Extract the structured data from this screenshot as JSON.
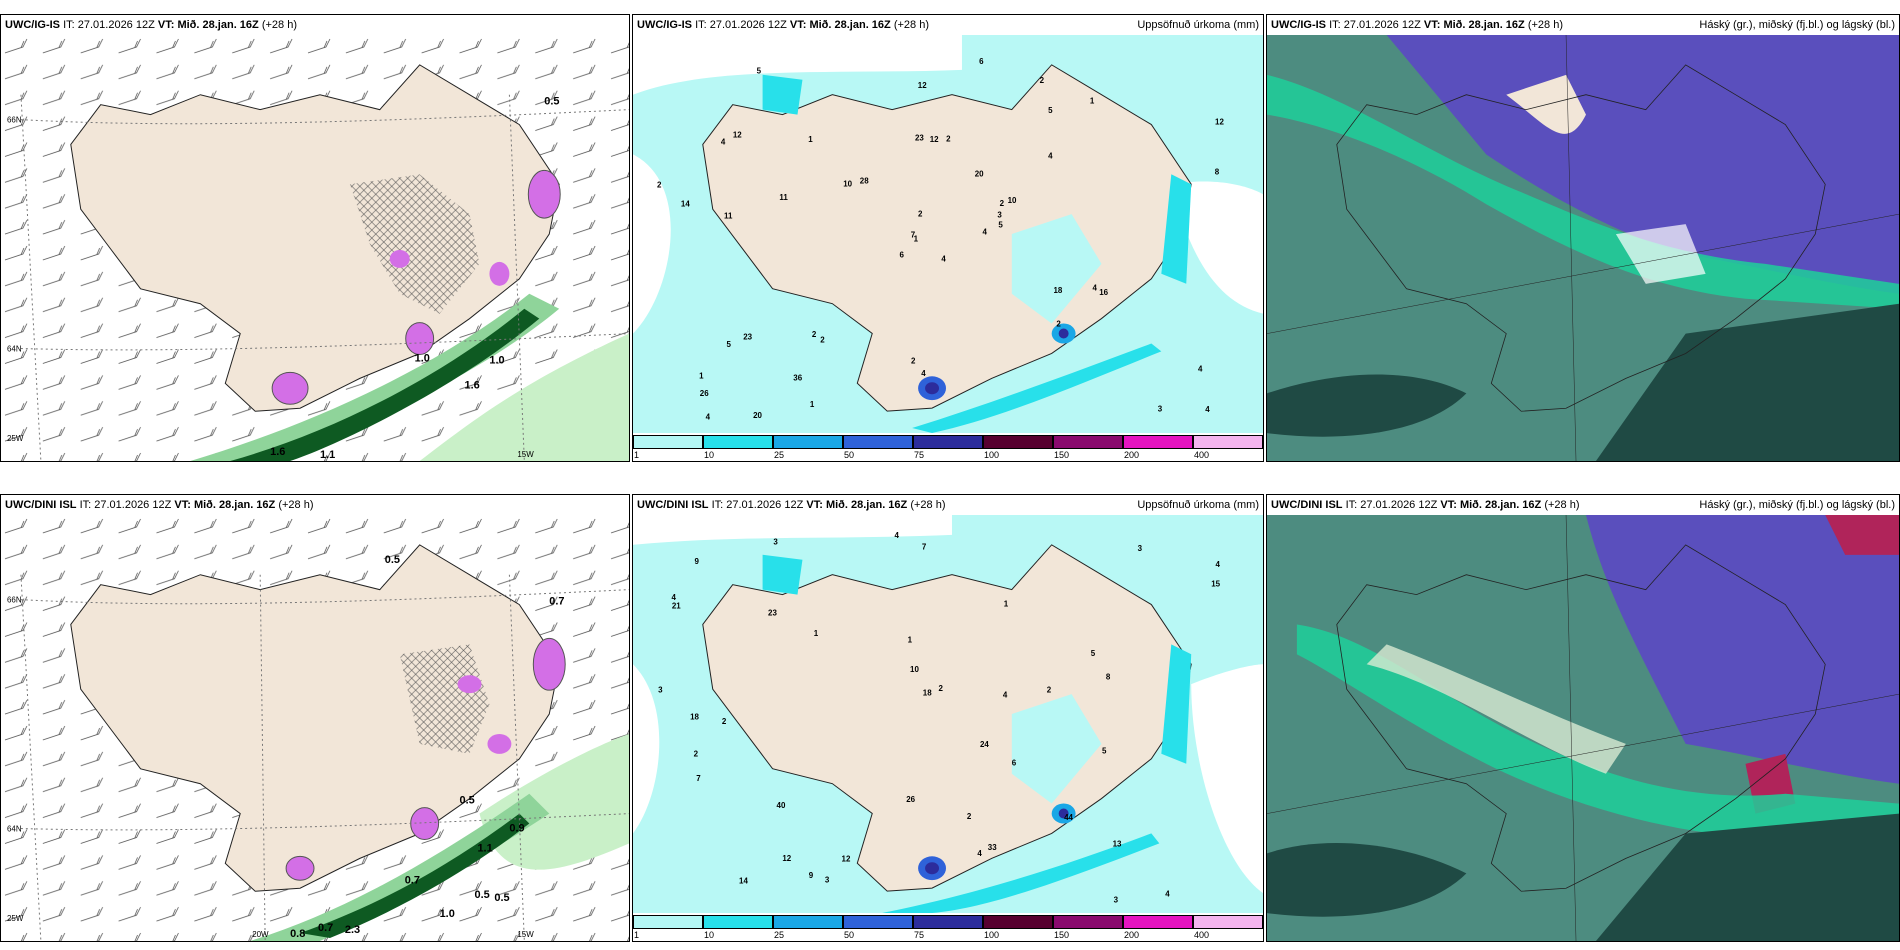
{
  "rows": [
    {
      "model": "UWC/IG-IS",
      "it_prefix": "IT:",
      "issue_time": "27.01.2026 12Z",
      "vt_prefix": "VT:",
      "valid_time": "Mið. 28.jan. 16Z",
      "lead_time": "(+28 h)",
      "wind": {
        "contour_labels": [
          "0.5",
          "1.0",
          "1.6",
          "1.1",
          "1.6",
          "1.0"
        ],
        "lat_labels": [
          "66N",
          "64N"
        ],
        "lon_labels": [
          "25W",
          "15W"
        ]
      },
      "precip": {
        "title": "Uppsöfnuð úrkoma (mm)",
        "point_values": [
          "4",
          "4",
          "1",
          "1",
          "2",
          "2",
          "2",
          "2",
          "5",
          "4",
          "5",
          "4",
          "11",
          "12",
          "6",
          "4",
          "20",
          "23",
          "20",
          "23",
          "28",
          "26",
          "36",
          "12",
          "10",
          "16",
          "12",
          "12",
          "14",
          "18",
          "8",
          "7",
          "2",
          "2",
          "1",
          "1",
          "2",
          "3",
          "4",
          "4",
          "6",
          "10",
          "11",
          "2",
          "1",
          "2",
          "3",
          "4",
          "4",
          "5",
          "5"
        ]
      },
      "clouds": {
        "title": "Háský (gr.), miðský (fj.bl.) og lágský (bl.)"
      }
    },
    {
      "model": "UWC/DINI ISL",
      "it_prefix": "IT:",
      "issue_time": "27.01.2026 12Z",
      "vt_prefix": "VT:",
      "valid_time": "Mið. 28.jan. 16Z",
      "lead_time": "(+28 h)",
      "wind": {
        "contour_labels": [
          "0.5",
          "0.5",
          "0.7",
          "0.5",
          "0.5",
          "1.1",
          "0.9",
          "0.7",
          "2.3",
          "1.0",
          "0.8",
          "0.7"
        ],
        "lat_labels": [
          "66N",
          "64N"
        ],
        "lon_labels": [
          "25W",
          "20W",
          "15W"
        ]
      },
      "precip": {
        "title": "Uppsöfnuð úrkoma (mm)",
        "point_values": [
          "3",
          "7",
          "5",
          "4",
          "4",
          "4",
          "2",
          "1",
          "1",
          "3",
          "2",
          "5",
          "4",
          "21",
          "23",
          "40",
          "33",
          "18",
          "24",
          "26",
          "44",
          "13",
          "15",
          "10",
          "12",
          "18",
          "6",
          "3",
          "3",
          "4",
          "2",
          "3",
          "4",
          "14",
          "9",
          "7",
          "8",
          "9",
          "12",
          "1",
          "2",
          "2"
        ]
      },
      "clouds": {
        "title": "Háský (gr.), miðský (fj.bl.) og lágský (bl.)"
      }
    }
  ],
  "colorbar": {
    "ticks": [
      "1",
      "10",
      "25",
      "50",
      "75",
      "100",
      "150",
      "200",
      "400"
    ],
    "colors": [
      "#b3f7f5",
      "#28e0ea",
      "#1aa7e6",
      "#2f62d9",
      "#2c2c9c",
      "#57002f",
      "#8a0a6e",
      "#e514c0",
      "#f4b4ee"
    ]
  },
  "colors": {
    "land": "#f2e6d8",
    "sea_wind": "#ffffff",
    "precip_light": "#b8f8f5",
    "cloud_high": "#4d8c80",
    "cloud_mid": "#5a4fbd",
    "cloud_low": "#1fcf9a",
    "green_light": "#c9f0c8",
    "green_dark": "#0e5a22",
    "purple": "#d36fe6"
  }
}
